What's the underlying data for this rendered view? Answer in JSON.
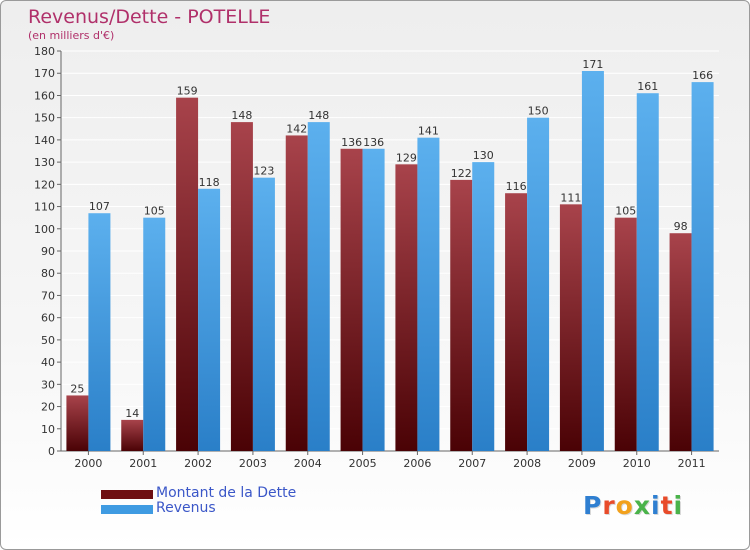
{
  "header": {
    "title": "Revenus/Dette - POTELLE",
    "subtitle": "(en milliers d'€)"
  },
  "legend": {
    "items": [
      {
        "label": "Montant de la Dette",
        "color": "#6e0f12"
      },
      {
        "label": "Revenus",
        "color": "#3f9be2"
      }
    ]
  },
  "logo": {
    "text": "Proxiti"
  },
  "chart_data": {
    "type": "bar",
    "title": "Revenus/Dette - POTELLE",
    "subtitle": "(en milliers d'€)",
    "categories": [
      "2000",
      "2001",
      "2002",
      "2003",
      "2004",
      "2005",
      "2006",
      "2007",
      "2008",
      "2009",
      "2010",
      "2011"
    ],
    "series": [
      {
        "name": "Montant de la Dette",
        "color": "#6e0f12",
        "values": [
          25,
          14,
          159,
          148,
          142,
          136,
          129,
          122,
          116,
          111,
          105,
          98
        ]
      },
      {
        "name": "Revenus",
        "color": "#3f9be2",
        "values": [
          107,
          105,
          118,
          123,
          148,
          136,
          141,
          130,
          150,
          171,
          161,
          166
        ]
      }
    ],
    "ylim": [
      0,
      180
    ],
    "ytick_step": 10,
    "grid": true,
    "legend_position": "bottom-left",
    "data_labels": true
  }
}
